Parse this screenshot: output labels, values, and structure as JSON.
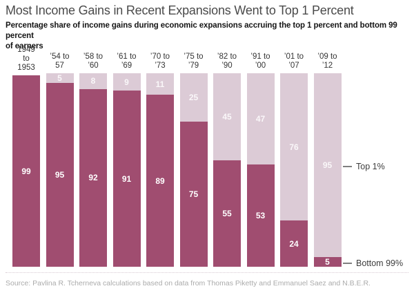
{
  "title": "Most Income Gains in Recent Expansions Went to Top 1 Percent",
  "subtitle_lines": [
    "Percentage share of income gains during economic expansions accruing the top 1 percent and bottom 99 percent",
    "of earners"
  ],
  "source": "Source: Pavlina R. Tcherneva calculations based on data from Thomas Piketty and Emmanuel Saez and N.B.E.R.",
  "legend": {
    "top1": "Top 1%",
    "bottom99": "Bottom 99%"
  },
  "colors": {
    "bottom99_bar": "#a04d70",
    "top1_bar": "#dccbd6",
    "title_text": "#4a4a4a"
  },
  "chart_data": {
    "type": "bar",
    "stacked": true,
    "title": "Most Income Gains in Recent Expansions Went to Top 1 Percent",
    "subtitle": "Percentage share of income gains during economic expansions accruing the top 1 percent and bottom 99 percent of earners",
    "unit": "percent",
    "ylim": [
      0,
      100
    ],
    "grid": false,
    "legend_position": "right",
    "categories": [
      "1949 to 1953",
      "’54 to 57",
      "’58 to ’60",
      "’61 to ’69",
      "’70 to ’73",
      "’75 to ’79",
      "’82 to ’90",
      "’91 to ’00",
      "’01 to ’07",
      "’09 to ’12"
    ],
    "category_label_lines": [
      [
        "1949",
        "to",
        "1953"
      ],
      [
        "’54 to",
        "57"
      ],
      [
        "’58 to",
        "’60"
      ],
      [
        "’61 to",
        "’69"
      ],
      [
        "’70 to",
        "’73"
      ],
      [
        "’75 to",
        "’79"
      ],
      [
        "’82 to",
        "’90"
      ],
      [
        "’91 to",
        "’00"
      ],
      [
        "’01 to",
        "’07"
      ],
      [
        "’09 to",
        "’12"
      ]
    ],
    "series": [
      {
        "name": "Bottom 99%",
        "values": [
          99,
          95,
          92,
          91,
          89,
          75,
          55,
          53,
          24,
          5
        ]
      },
      {
        "name": "Top 1%",
        "values": [
          null,
          5,
          8,
          9,
          11,
          25,
          45,
          47,
          76,
          95
        ]
      }
    ]
  }
}
